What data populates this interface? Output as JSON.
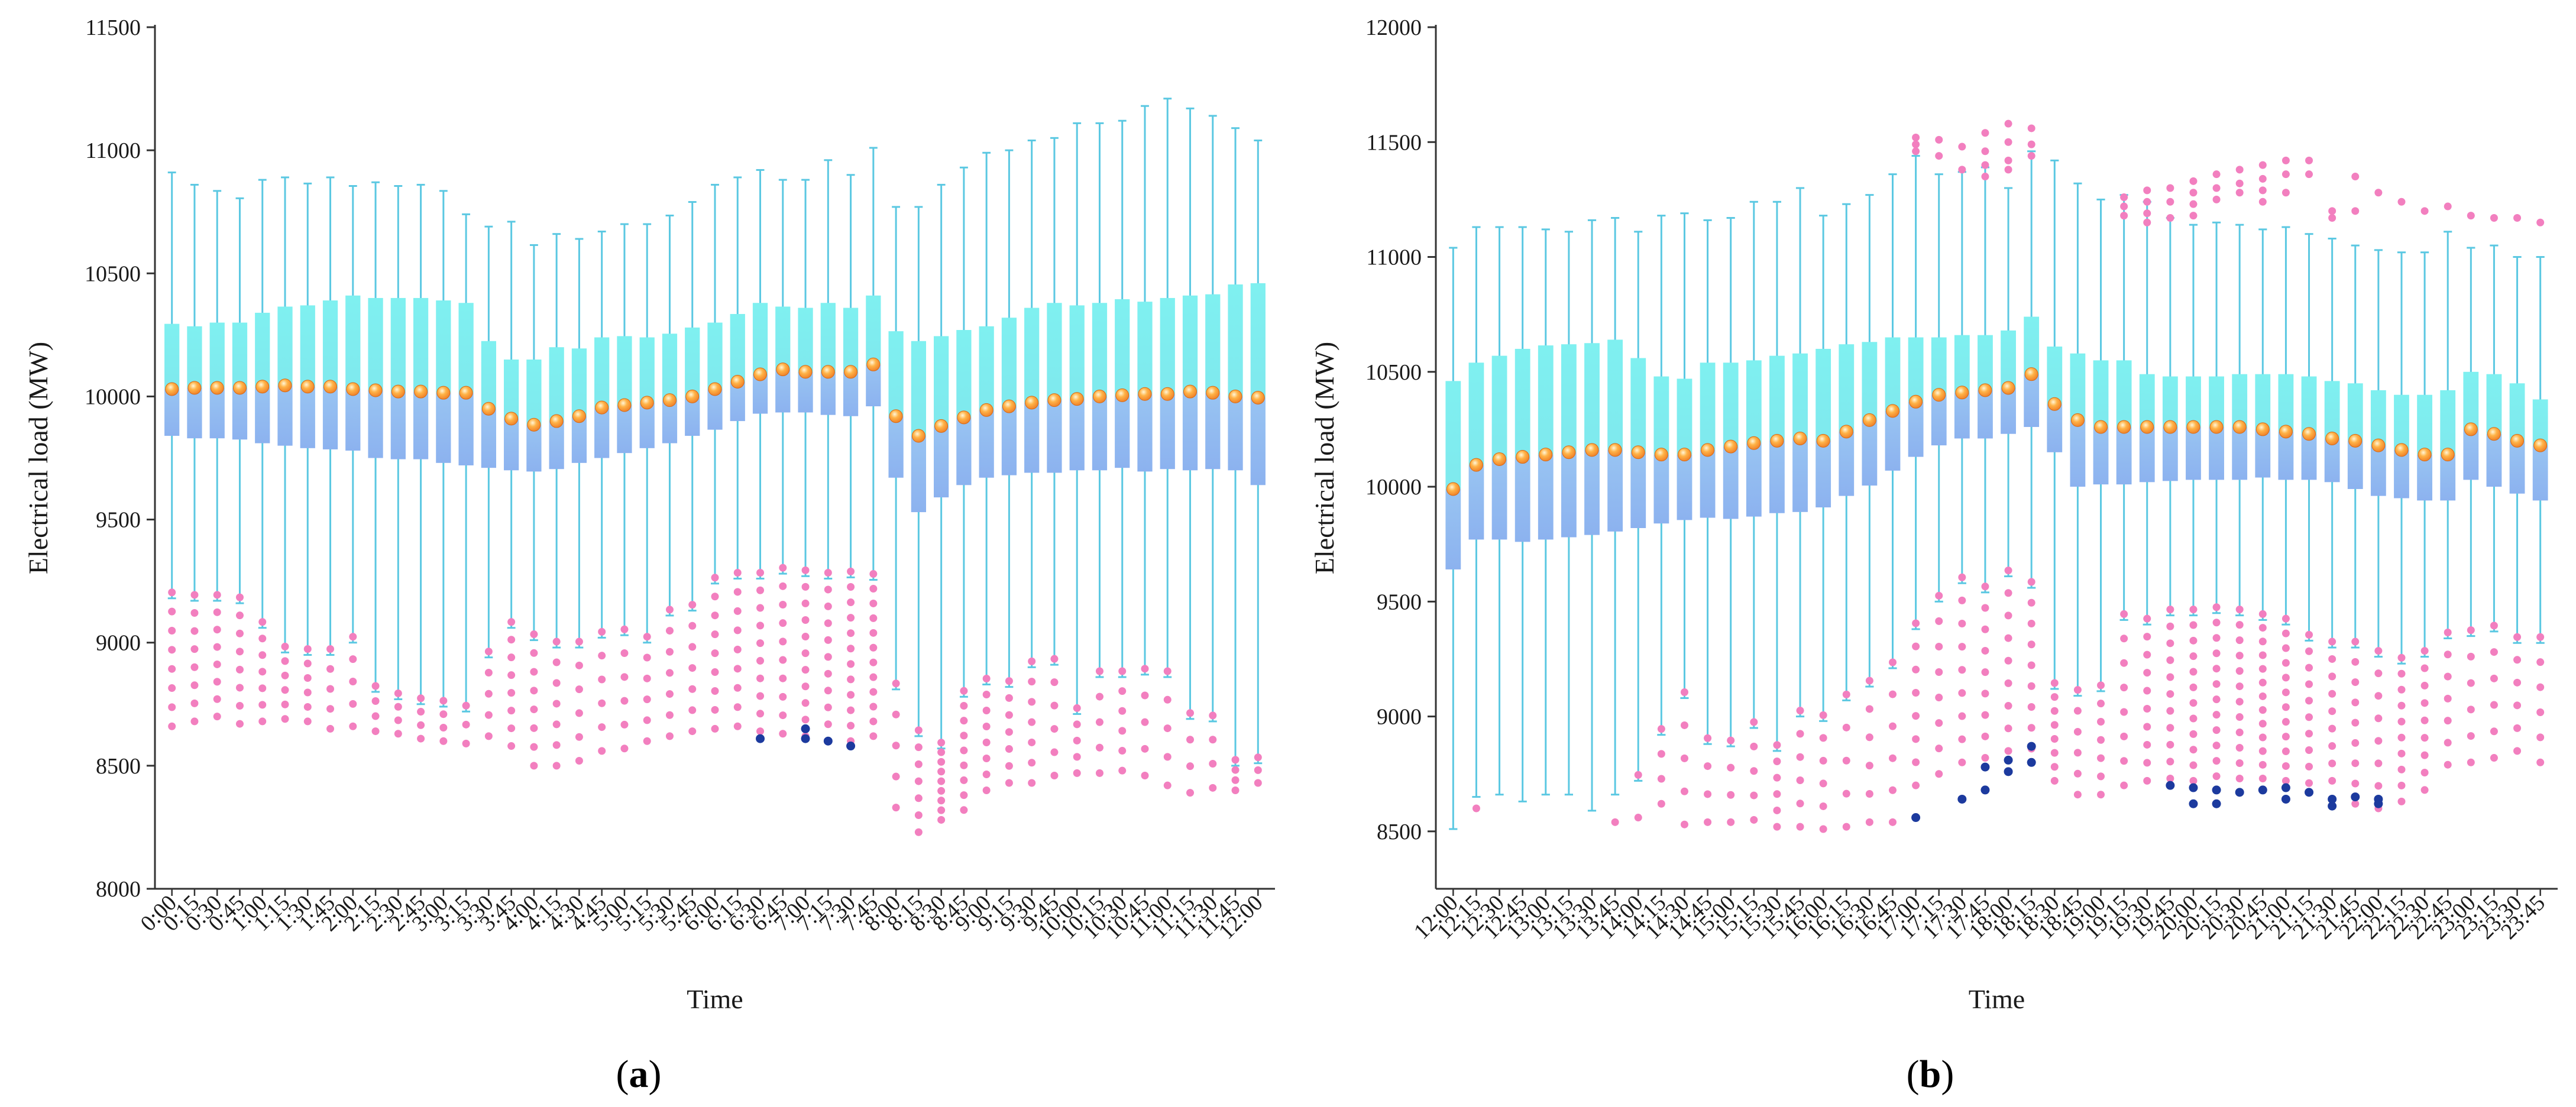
{
  "colors": {
    "axis": "#333333",
    "whisker": "#5bc8e2",
    "box_upper": "#7fe9ee",
    "box_lower": "#8cb2ef",
    "median": "#f0832a",
    "outlier_pink": "#f27fbf",
    "outlier_blue": "#1c3a9e"
  },
  "chart_data": [
    {
      "type": "boxplot",
      "panel_label": "a",
      "xlabel": "Time",
      "ylabel": "Electrical load (MW)",
      "ylim": [
        8000,
        11500
      ],
      "yticks": [
        8000,
        8500,
        9000,
        9500,
        10000,
        10500,
        11000,
        11500
      ],
      "categories": [
        "0:00",
        "0:15",
        "0:30",
        "0:45",
        "1:00",
        "1:15",
        "1:30",
        "1:45",
        "2:00",
        "2:15",
        "2:30",
        "2:45",
        "3:00",
        "3:15",
        "3:30",
        "3:45",
        "4:00",
        "4:15",
        "4:30",
        "4:45",
        "5:00",
        "5:15",
        "5:30",
        "5:45",
        "6:00",
        "6:15",
        "6:30",
        "6:45",
        "7:00",
        "7:15",
        "7:30",
        "7:45",
        "8:00",
        "8:15",
        "8:30",
        "8:45",
        "9:00",
        "9:15",
        "9:30",
        "9:45",
        "10:00",
        "10:15",
        "10:30",
        "10:45",
        "11:00",
        "11:15",
        "11:30",
        "11:45",
        "12:00"
      ],
      "whisker_high": [
        10910,
        10860,
        10835,
        10805,
        10880,
        10890,
        10865,
        10890,
        10855,
        10870,
        10855,
        10860,
        10835,
        10740,
        10690,
        10710,
        10615,
        10660,
        10640,
        10670,
        10700,
        10700,
        10735,
        10790,
        10860,
        10890,
        10920,
        10880,
        10880,
        10960,
        10900,
        11010,
        10770,
        10770,
        10860,
        10930,
        10990,
        11000,
        11040,
        11050,
        11110,
        11110,
        11120,
        11180,
        11210,
        11170,
        11140,
        11090,
        11040
      ],
      "q3": [
        10295,
        10285,
        10300,
        10300,
        10340,
        10365,
        10370,
        10390,
        10410,
        10400,
        10400,
        10400,
        10390,
        10380,
        10225,
        10150,
        10150,
        10200,
        10195,
        10240,
        10245,
        10240,
        10255,
        10280,
        10300,
        10335,
        10380,
        10365,
        10360,
        10380,
        10360,
        10410,
        10265,
        10225,
        10245,
        10270,
        10285,
        10320,
        10360,
        10380,
        10370,
        10380,
        10395,
        10385,
        10400,
        10410,
        10415,
        10455,
        10460
      ],
      "median": [
        10030,
        10035,
        10035,
        10035,
        10040,
        10045,
        10040,
        10040,
        10030,
        10025,
        10020,
        10020,
        10015,
        10015,
        9950,
        9910,
        9885,
        9900,
        9920,
        9955,
        9965,
        9975,
        9985,
        10000,
        10030,
        10060,
        10090,
        10110,
        10100,
        10100,
        10100,
        10130,
        9920,
        9840,
        9880,
        9915,
        9945,
        9960,
        9975,
        9985,
        9990,
        10000,
        10005,
        10010,
        10010,
        10020,
        10015,
        10000,
        9995
      ],
      "q1": [
        9840,
        9830,
        9830,
        9825,
        9810,
        9800,
        9790,
        9785,
        9780,
        9750,
        9745,
        9745,
        9730,
        9720,
        9710,
        9700,
        9695,
        9705,
        9730,
        9750,
        9770,
        9790,
        9810,
        9840,
        9865,
        9900,
        9930,
        9935,
        9935,
        9925,
        9920,
        9960,
        9670,
        9530,
        9590,
        9640,
        9670,
        9680,
        9690,
        9690,
        9700,
        9700,
        9710,
        9695,
        9705,
        9700,
        9705,
        9700,
        9640
      ],
      "whisker_low": [
        9180,
        9170,
        9170,
        9160,
        9060,
        8960,
        8950,
        8950,
        9000,
        8800,
        8770,
        8750,
        8740,
        8720,
        8940,
        9060,
        9010,
        8980,
        8980,
        9020,
        9030,
        9000,
        9110,
        9130,
        9240,
        9260,
        9260,
        9280,
        9270,
        9260,
        9265,
        9255,
        8810,
        8620,
        8570,
        8780,
        8830,
        8820,
        8900,
        8910,
        8710,
        8860,
        8860,
        8870,
        8860,
        8690,
        8680,
        8500,
        8510
      ],
      "outliers_low_counts": [
        8,
        8,
        8,
        8,
        7,
        6,
        6,
        5,
        5,
        4,
        4,
        4,
        4,
        3,
        5,
        8,
        8,
        7,
        6,
        6,
        6,
        6,
        7,
        7,
        9,
        9,
        10,
        10,
        11,
        11,
        12,
        12,
        5,
        7,
        9,
        9,
        8,
        7,
        7,
        6,
        5,
        5,
        6,
        5,
        5,
        4,
        4,
        4,
        3
      ],
      "outliers_low_min": [
        8660,
        8680,
        8700,
        8670,
        8680,
        8690,
        8680,
        8650,
        8660,
        8640,
        8630,
        8610,
        8600,
        8590,
        8620,
        8580,
        8500,
        8500,
        8520,
        8560,
        8570,
        8600,
        8620,
        8640,
        8650,
        8660,
        8640,
        8630,
        8620,
        8600,
        8600,
        8620,
        8330,
        8230,
        8280,
        8320,
        8400,
        8430,
        8430,
        8460,
        8470,
        8470,
        8480,
        8460,
        8420,
        8390,
        8410,
        8400,
        8430
      ],
      "outliers_blue": [
        [
          26,
          8610
        ],
        [
          28,
          8610
        ],
        [
          28,
          8650
        ],
        [
          29,
          8600
        ],
        [
          30,
          8580
        ]
      ]
    },
    {
      "type": "boxplot",
      "panel_label": "b",
      "xlabel": "Time",
      "ylabel": "Electrical load (MW)",
      "ylim": [
        8250,
        12000
      ],
      "yticks": [
        8500,
        9000,
        9500,
        10000,
        10500,
        11000,
        11500,
        12000
      ],
      "categories": [
        "12:00",
        "12:15",
        "12:30",
        "12:45",
        "13:00",
        "13:15",
        "13:30",
        "13:45",
        "14:00",
        "14:15",
        "14:30",
        "14:45",
        "15:00",
        "15:15",
        "15:30",
        "15:45",
        "16:00",
        "16:15",
        "16:30",
        "16:45",
        "17:00",
        "17:15",
        "17:30",
        "17:45",
        "18:00",
        "18:15",
        "18:30",
        "18:45",
        "19:00",
        "19:15",
        "19:30",
        "19:45",
        "20:00",
        "20:15",
        "20:30",
        "20:45",
        "21:00",
        "21:15",
        "21:30",
        "21:45",
        "22:00",
        "22:15",
        "22:30",
        "22:45",
        "23:00",
        "23:15",
        "23:30",
        "23:45"
      ],
      "whisker_high": [
        11040,
        11130,
        11130,
        11130,
        11120,
        11110,
        11160,
        11170,
        11110,
        11180,
        11190,
        11160,
        11170,
        11240,
        11240,
        11300,
        11180,
        11230,
        11270,
        11360,
        11440,
        11360,
        11370,
        11390,
        11300,
        11460,
        11420,
        11320,
        11250,
        11270,
        11240,
        11170,
        11140,
        11150,
        11140,
        11120,
        11130,
        11100,
        11080,
        11050,
        11030,
        11020,
        11020,
        11110,
        11040,
        11050,
        11000,
        11000
      ],
      "q3": [
        10460,
        10540,
        10570,
        10600,
        10615,
        10620,
        10625,
        10640,
        10560,
        10480,
        10470,
        10540,
        10540,
        10550,
        10570,
        10580,
        10600,
        10620,
        10630,
        10650,
        10650,
        10650,
        10660,
        10660,
        10680,
        10740,
        10610,
        10580,
        10550,
        10550,
        10490,
        10480,
        10480,
        10480,
        10490,
        10490,
        10490,
        10480,
        10460,
        10450,
        10420,
        10400,
        10400,
        10420,
        10500,
        10490,
        10450,
        10380
      ],
      "median": [
        9990,
        10095,
        10120,
        10130,
        10140,
        10150,
        10160,
        10160,
        10150,
        10140,
        10140,
        10160,
        10175,
        10190,
        10200,
        10210,
        10200,
        10240,
        10290,
        10330,
        10370,
        10400,
        10410,
        10420,
        10430,
        10490,
        10360,
        10290,
        10260,
        10260,
        10260,
        10260,
        10260,
        10260,
        10260,
        10250,
        10240,
        10230,
        10210,
        10200,
        10180,
        10160,
        10140,
        10140,
        10250,
        10230,
        10200,
        10180
      ],
      "q1": [
        9640,
        9770,
        9770,
        9760,
        9770,
        9780,
        9790,
        9805,
        9820,
        9840,
        9855,
        9865,
        9860,
        9870,
        9885,
        9890,
        9910,
        9960,
        10005,
        10070,
        10130,
        10180,
        10210,
        10210,
        10230,
        10260,
        10150,
        10000,
        10010,
        10010,
        10020,
        10025,
        10030,
        10030,
        10030,
        10040,
        10030,
        10030,
        10020,
        9990,
        9960,
        9950,
        9940,
        9940,
        10030,
        10000,
        9970,
        9940
      ],
      "whisker_low": [
        8510,
        8650,
        8660,
        8630,
        8660,
        8660,
        8590,
        8660,
        8720,
        8920,
        9080,
        8880,
        8870,
        8950,
        8850,
        9000,
        8980,
        9070,
        9130,
        9210,
        9380,
        9500,
        9580,
        9540,
        9610,
        9560,
        9120,
        9090,
        9110,
        9420,
        9400,
        9440,
        9440,
        9450,
        9440,
        9420,
        9400,
        9330,
        9300,
        9300,
        9260,
        9230,
        9260,
        9340,
        9350,
        9370,
        9320,
        9320
      ],
      "outliers_low_counts": [
        0,
        1,
        0,
        0,
        0,
        0,
        0,
        1,
        2,
        4,
        5,
        4,
        4,
        5,
        6,
        6,
        6,
        5,
        6,
        6,
        8,
        8,
        9,
        9,
        9,
        9,
        8,
        6,
        7,
        8,
        10,
        11,
        12,
        12,
        12,
        13,
        12,
        10,
        9,
        9,
        8,
        10,
        9,
        7,
        6,
        6,
        6,
        6
      ],
      "outliers_low_min": [
        0,
        8600,
        0,
        0,
        0,
        0,
        0,
        8540,
        8560,
        8620,
        8530,
        8540,
        8540,
        8550,
        8520,
        8520,
        8510,
        8520,
        8540,
        8540,
        8700,
        8750,
        8800,
        8820,
        8850,
        8860,
        8720,
        8660,
        8660,
        8700,
        8720,
        8730,
        8720,
        8740,
        8730,
        8730,
        8720,
        8710,
        8720,
        8620,
        8600,
        8630,
        8680,
        8790,
        8800,
        8820,
        8850,
        8800
      ],
      "outliers_high": [
        [
          20,
          11520
        ],
        [
          20,
          11490
        ],
        [
          20,
          11460
        ],
        [
          21,
          11510
        ],
        [
          21,
          11440
        ],
        [
          22,
          11480
        ],
        [
          22,
          11380
        ],
        [
          23,
          11540
        ],
        [
          23,
          11460
        ],
        [
          23,
          11400
        ],
        [
          23,
          11350
        ],
        [
          24,
          11580
        ],
        [
          24,
          11500
        ],
        [
          24,
          11420
        ],
        [
          24,
          11380
        ],
        [
          25,
          11560
        ],
        [
          25,
          11490
        ],
        [
          25,
          11440
        ],
        [
          29,
          11260
        ],
        [
          29,
          11220
        ],
        [
          29,
          11180
        ],
        [
          30,
          11290
        ],
        [
          30,
          11240
        ],
        [
          30,
          11190
        ],
        [
          30,
          11150
        ],
        [
          31,
          11300
        ],
        [
          31,
          11240
        ],
        [
          31,
          11170
        ],
        [
          32,
          11330
        ],
        [
          32,
          11280
        ],
        [
          32,
          11230
        ],
        [
          32,
          11180
        ],
        [
          33,
          11360
        ],
        [
          33,
          11300
        ],
        [
          33,
          11250
        ],
        [
          34,
          11380
        ],
        [
          34,
          11320
        ],
        [
          34,
          11280
        ],
        [
          35,
          11400
        ],
        [
          35,
          11340
        ],
        [
          35,
          11290
        ],
        [
          35,
          11240
        ],
        [
          36,
          11420
        ],
        [
          36,
          11360
        ],
        [
          36,
          11280
        ],
        [
          37,
          11420
        ],
        [
          37,
          11360
        ],
        [
          38,
          11200
        ],
        [
          38,
          11170
        ],
        [
          39,
          11350
        ],
        [
          39,
          11200
        ],
        [
          40,
          11280
        ],
        [
          41,
          11240
        ],
        [
          42,
          11200
        ],
        [
          43,
          11220
        ],
        [
          44,
          11180
        ],
        [
          45,
          11170
        ],
        [
          46,
          11170
        ],
        [
          47,
          11150
        ]
      ],
      "outliers_blue": [
        [
          20,
          8560
        ],
        [
          22,
          8640
        ],
        [
          23,
          8680
        ],
        [
          23,
          8780
        ],
        [
          24,
          8760
        ],
        [
          24,
          8810
        ],
        [
          25,
          8800
        ],
        [
          25,
          8870
        ],
        [
          31,
          8700
        ],
        [
          32,
          8690
        ],
        [
          32,
          8620
        ],
        [
          33,
          8680
        ],
        [
          33,
          8620
        ],
        [
          34,
          8670
        ],
        [
          35,
          8680
        ],
        [
          36,
          8690
        ],
        [
          36,
          8640
        ],
        [
          37,
          8670
        ],
        [
          38,
          8640
        ],
        [
          38,
          8610
        ],
        [
          39,
          8650
        ],
        [
          40,
          8640
        ],
        [
          40,
          8620
        ]
      ]
    }
  ]
}
